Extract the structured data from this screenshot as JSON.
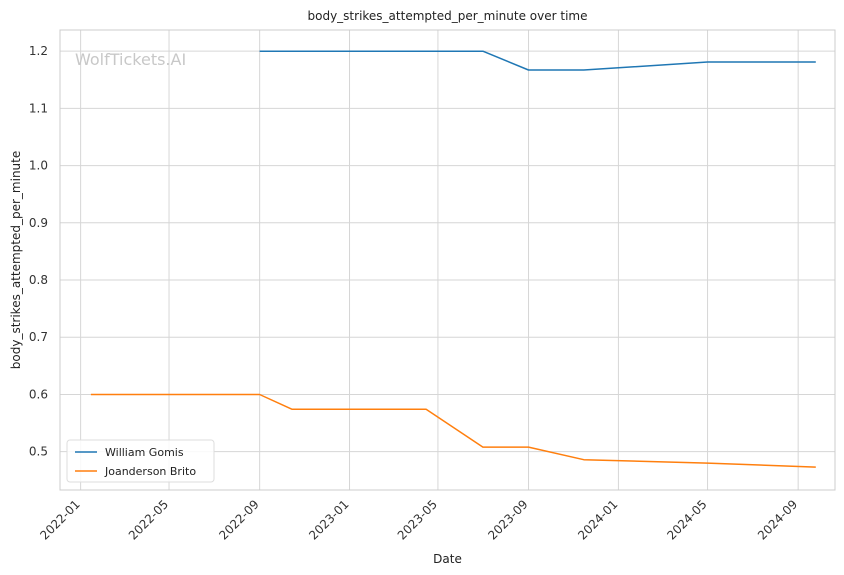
{
  "chart_data": {
    "type": "line",
    "title": "body_strikes_attempted_per_minute over time",
    "xlabel": "Date",
    "ylabel": "body_strikes_attempted_per_minute",
    "watermark": "WolfTickets.AI",
    "x_ticks": [
      "2022-01",
      "2022-05",
      "2022-09",
      "2023-01",
      "2023-05",
      "2023-09",
      "2024-01",
      "2024-05",
      "2024-09"
    ],
    "y_ticks": [
      0.5,
      0.6,
      0.7,
      0.8,
      0.9,
      1.0,
      1.1,
      1.2
    ],
    "xlim": [
      "2021-12-04",
      "2024-10-21"
    ],
    "ylim": [
      0.433,
      1.237
    ],
    "grid": true,
    "legend": "lower-left",
    "series": [
      {
        "name": "William Gomis",
        "color": "#1f77b4",
        "points": [
          {
            "x": "2022-09-01",
            "y": 1.2
          },
          {
            "x": "2023-07-01",
            "y": 1.2
          },
          {
            "x": "2023-09-01",
            "y": 1.167
          },
          {
            "x": "2023-11-15",
            "y": 1.167
          },
          {
            "x": "2024-05-01",
            "y": 1.181
          },
          {
            "x": "2024-09-25",
            "y": 1.181
          }
        ]
      },
      {
        "name": "Joanderson Brito",
        "color": "#ff7f0e",
        "points": [
          {
            "x": "2022-01-15",
            "y": 0.6
          },
          {
            "x": "2022-09-01",
            "y": 0.6
          },
          {
            "x": "2022-10-15",
            "y": 0.574
          },
          {
            "x": "2023-04-15",
            "y": 0.574
          },
          {
            "x": "2023-07-01",
            "y": 0.508
          },
          {
            "x": "2023-09-01",
            "y": 0.508
          },
          {
            "x": "2023-11-15",
            "y": 0.486
          },
          {
            "x": "2024-05-01",
            "y": 0.48
          },
          {
            "x": "2024-09-25",
            "y": 0.473
          }
        ]
      }
    ]
  }
}
